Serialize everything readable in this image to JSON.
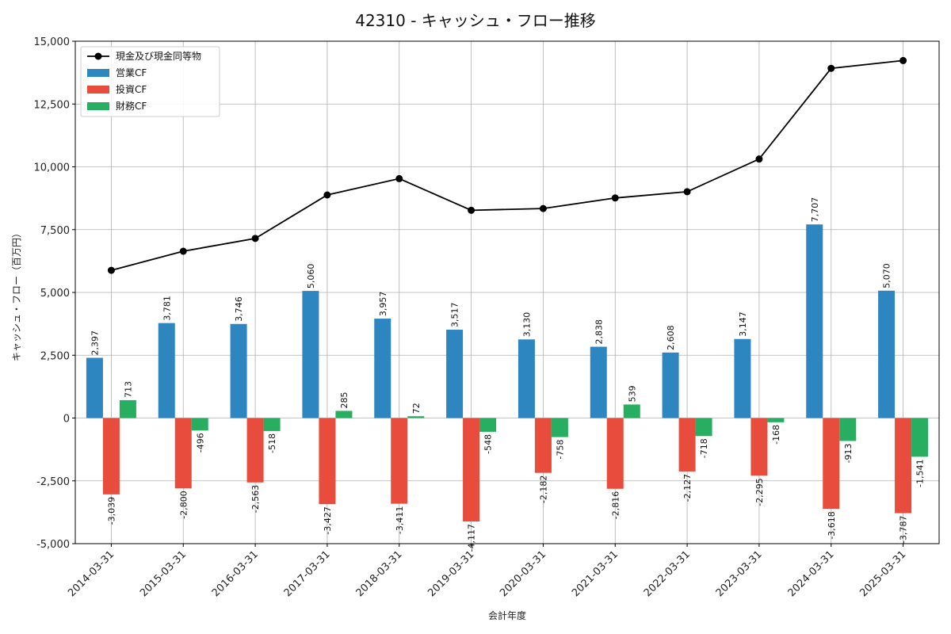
{
  "chart_data": {
    "type": "bar",
    "title": "42310 - キャッシュ・フロー推移",
    "xlabel": "会計年度",
    "ylabel": "キャッシュ・フロー（百万円）",
    "ylim": [
      -5000,
      15000
    ],
    "yticks": [
      -5000,
      -2500,
      0,
      2500,
      5000,
      7500,
      10000,
      12500,
      15000
    ],
    "ytick_labels": [
      "-5,000",
      "-2,500",
      "0",
      "2,500",
      "5,000",
      "7,500",
      "10,000",
      "12,500",
      "15,000"
    ],
    "grid": true,
    "legend_position": "top-left",
    "categories": [
      "2014-03-31",
      "2015-03-31",
      "2016-03-31",
      "2017-03-31",
      "2018-03-31",
      "2019-03-31",
      "2020-03-31",
      "2021-03-31",
      "2022-03-31",
      "2023-03-31",
      "2024-03-31",
      "2025-03-31"
    ],
    "series": [
      {
        "name": "営業CF",
        "kind": "bar",
        "color": "#2e86c1",
        "values": [
          2397,
          3781,
          3746,
          5060,
          3957,
          3517,
          3130,
          2838,
          2608,
          3147,
          7707,
          5070
        ],
        "labels": [
          "2,397",
          "3,781",
          "3,746",
          "5,060",
          "3,957",
          "3,517",
          "3,130",
          "2,838",
          "2,608",
          "3,147",
          "7,707",
          "5,070"
        ]
      },
      {
        "name": "投資CF",
        "kind": "bar",
        "color": "#e74c3c",
        "values": [
          -3039,
          -2800,
          -2563,
          -3427,
          -3411,
          -4117,
          -2182,
          -2816,
          -2127,
          -2295,
          -3618,
          -3787
        ],
        "labels": [
          "-3,039",
          "-2,800",
          "-2,563",
          "-3,427",
          "-3,411",
          "-4,117",
          "-2,182",
          "-2,816",
          "-2,127",
          "-2,295",
          "-3,618",
          "-3,787"
        ]
      },
      {
        "name": "財務CF",
        "kind": "bar",
        "color": "#27ae60",
        "values": [
          713,
          -496,
          -518,
          285,
          72,
          -548,
          -758,
          539,
          -718,
          -168,
          -913,
          -1541
        ],
        "labels": [
          "713",
          "-496",
          "-518",
          "285",
          "72",
          "-548",
          "-758",
          "539",
          "-718",
          "-168",
          "-913",
          "-1,541"
        ]
      },
      {
        "name": "現金及び現金同等物",
        "kind": "line",
        "color": "#000000",
        "values": [
          5880,
          6640,
          7150,
          8880,
          9530,
          8270,
          8340,
          8760,
          9010,
          10310,
          13920,
          14230
        ]
      }
    ]
  }
}
